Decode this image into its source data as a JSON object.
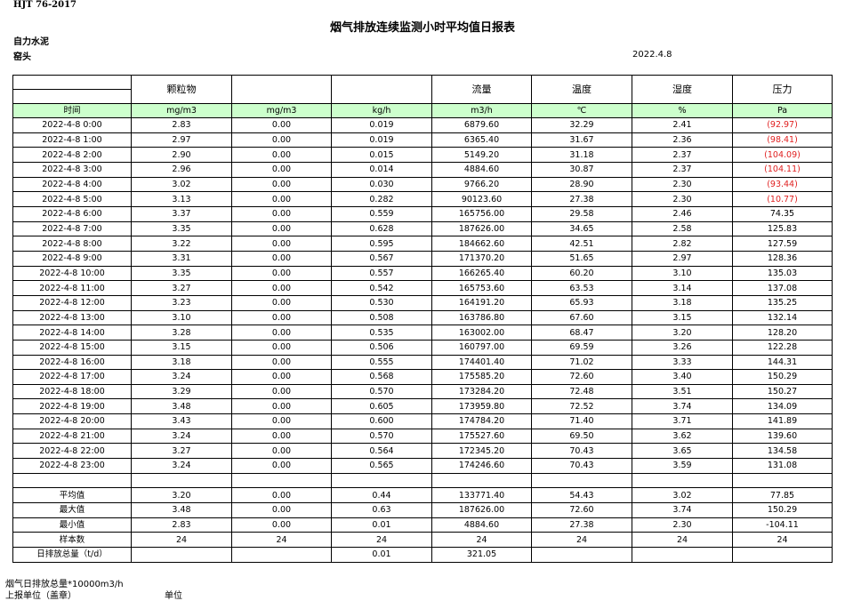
{
  "header": {
    "standard": "HJT   76-2017",
    "title": "烟气排放连续监测小时平均值日报表",
    "company": "自力水泥",
    "unit": "窑头",
    "date": "2022.4.8"
  },
  "columns": {
    "names": [
      "",
      "颗粒物",
      "",
      "",
      "流量",
      "温度",
      "湿度",
      "压力"
    ],
    "units": [
      "时间",
      "mg/m3",
      "mg/m3",
      "kg/h",
      "m3/h",
      "℃",
      "%",
      "Pa"
    ]
  },
  "colors": {
    "unit_row_bg": "#ccffcc",
    "abnormal_text": "#e02020"
  },
  "rows": [
    {
      "time": "2022-4-8 0:00",
      "v": [
        "2.83",
        "0.00",
        "0.019",
        "6879.60",
        "32.29",
        "2.41",
        "(92.97)"
      ],
      "abnormal": true
    },
    {
      "time": "2022-4-8 1:00",
      "v": [
        "2.97",
        "0.00",
        "0.019",
        "6365.40",
        "31.67",
        "2.36",
        "(98.41)"
      ],
      "abnormal": true
    },
    {
      "time": "2022-4-8 2:00",
      "v": [
        "2.90",
        "0.00",
        "0.015",
        "5149.20",
        "31.18",
        "2.37",
        "(104.09)"
      ],
      "abnormal": true
    },
    {
      "time": "2022-4-8 3:00",
      "v": [
        "2.96",
        "0.00",
        "0.014",
        "4884.60",
        "30.87",
        "2.37",
        "(104.11)"
      ],
      "abnormal": true
    },
    {
      "time": "2022-4-8 4:00",
      "v": [
        "3.02",
        "0.00",
        "0.030",
        "9766.20",
        "28.90",
        "2.30",
        "(93.44)"
      ],
      "abnormal": true
    },
    {
      "time": "2022-4-8 5:00",
      "v": [
        "3.13",
        "0.00",
        "0.282",
        "90123.60",
        "27.38",
        "2.30",
        "(10.77)"
      ],
      "abnormal": true
    },
    {
      "time": "2022-4-8 6:00",
      "v": [
        "3.37",
        "0.00",
        "0.559",
        "165756.00",
        "29.58",
        "2.46",
        "74.35"
      ]
    },
    {
      "time": "2022-4-8 7:00",
      "v": [
        "3.35",
        "0.00",
        "0.628",
        "187626.00",
        "34.65",
        "2.58",
        "125.83"
      ]
    },
    {
      "time": "2022-4-8 8:00",
      "v": [
        "3.22",
        "0.00",
        "0.595",
        "184662.60",
        "42.51",
        "2.82",
        "127.59"
      ]
    },
    {
      "time": "2022-4-8 9:00",
      "v": [
        "3.31",
        "0.00",
        "0.567",
        "171370.20",
        "51.65",
        "2.97",
        "128.36"
      ]
    },
    {
      "time": "2022-4-8 10:00",
      "v": [
        "3.35",
        "0.00",
        "0.557",
        "166265.40",
        "60.20",
        "3.10",
        "135.03"
      ]
    },
    {
      "time": "2022-4-8 11:00",
      "v": [
        "3.27",
        "0.00",
        "0.542",
        "165753.60",
        "63.53",
        "3.14",
        "137.08"
      ]
    },
    {
      "time": "2022-4-8 12:00",
      "v": [
        "3.23",
        "0.00",
        "0.530",
        "164191.20",
        "65.93",
        "3.18",
        "135.25"
      ]
    },
    {
      "time": "2022-4-8 13:00",
      "v": [
        "3.10",
        "0.00",
        "0.508",
        "163786.80",
        "67.60",
        "3.15",
        "132.14"
      ]
    },
    {
      "time": "2022-4-8 14:00",
      "v": [
        "3.28",
        "0.00",
        "0.535",
        "163002.00",
        "68.47",
        "3.20",
        "128.20"
      ]
    },
    {
      "time": "2022-4-8 15:00",
      "v": [
        "3.15",
        "0.00",
        "0.506",
        "160797.00",
        "69.59",
        "3.26",
        "122.28"
      ]
    },
    {
      "time": "2022-4-8 16:00",
      "v": [
        "3.18",
        "0.00",
        "0.555",
        "174401.40",
        "71.02",
        "3.33",
        "144.31"
      ]
    },
    {
      "time": "2022-4-8 17:00",
      "v": [
        "3.24",
        "0.00",
        "0.568",
        "175585.20",
        "72.60",
        "3.40",
        "150.29"
      ]
    },
    {
      "time": "2022-4-8 18:00",
      "v": [
        "3.29",
        "0.00",
        "0.570",
        "173284.20",
        "72.48",
        "3.51",
        "150.27"
      ]
    },
    {
      "time": "2022-4-8 19:00",
      "v": [
        "3.48",
        "0.00",
        "0.605",
        "173959.80",
        "72.52",
        "3.74",
        "134.09"
      ]
    },
    {
      "time": "2022-4-8 20:00",
      "v": [
        "3.43",
        "0.00",
        "0.600",
        "174784.20",
        "71.40",
        "3.71",
        "141.89"
      ]
    },
    {
      "time": "2022-4-8 21:00",
      "v": [
        "3.24",
        "0.00",
        "0.570",
        "175527.60",
        "69.50",
        "3.62",
        "139.60"
      ]
    },
    {
      "time": "2022-4-8 22:00",
      "v": [
        "3.27",
        "0.00",
        "0.564",
        "172345.20",
        "70.43",
        "3.65",
        "134.58"
      ]
    },
    {
      "time": "2022-4-8 23:00",
      "v": [
        "3.24",
        "0.00",
        "0.565",
        "174246.60",
        "70.43",
        "3.59",
        "131.08"
      ]
    }
  ],
  "stats": [
    {
      "label": "平均值",
      "v": [
        "3.20",
        "0.00",
        "0.44",
        "133771.40",
        "54.43",
        "3.02",
        "77.85"
      ]
    },
    {
      "label": "最大值",
      "v": [
        "3.48",
        "0.00",
        "0.63",
        "187626.00",
        "72.60",
        "3.74",
        "150.29"
      ]
    },
    {
      "label": "最小值",
      "v": [
        "2.83",
        "0.00",
        "0.01",
        "4884.60",
        "27.38",
        "2.30",
        "-104.11"
      ]
    },
    {
      "label": "样本数",
      "v": [
        "24",
        "24",
        "24",
        "24",
        "24",
        "24",
        "24"
      ]
    },
    {
      "label": "日排放总量（t/d）",
      "v": [
        "",
        "",
        "0.01",
        "321.05",
        "",
        "",
        ""
      ]
    }
  ],
  "footer": {
    "note": "烟气日排放总量*10000m3/h",
    "reporter": "上报单位（盖章）",
    "unit_label": "单位"
  }
}
